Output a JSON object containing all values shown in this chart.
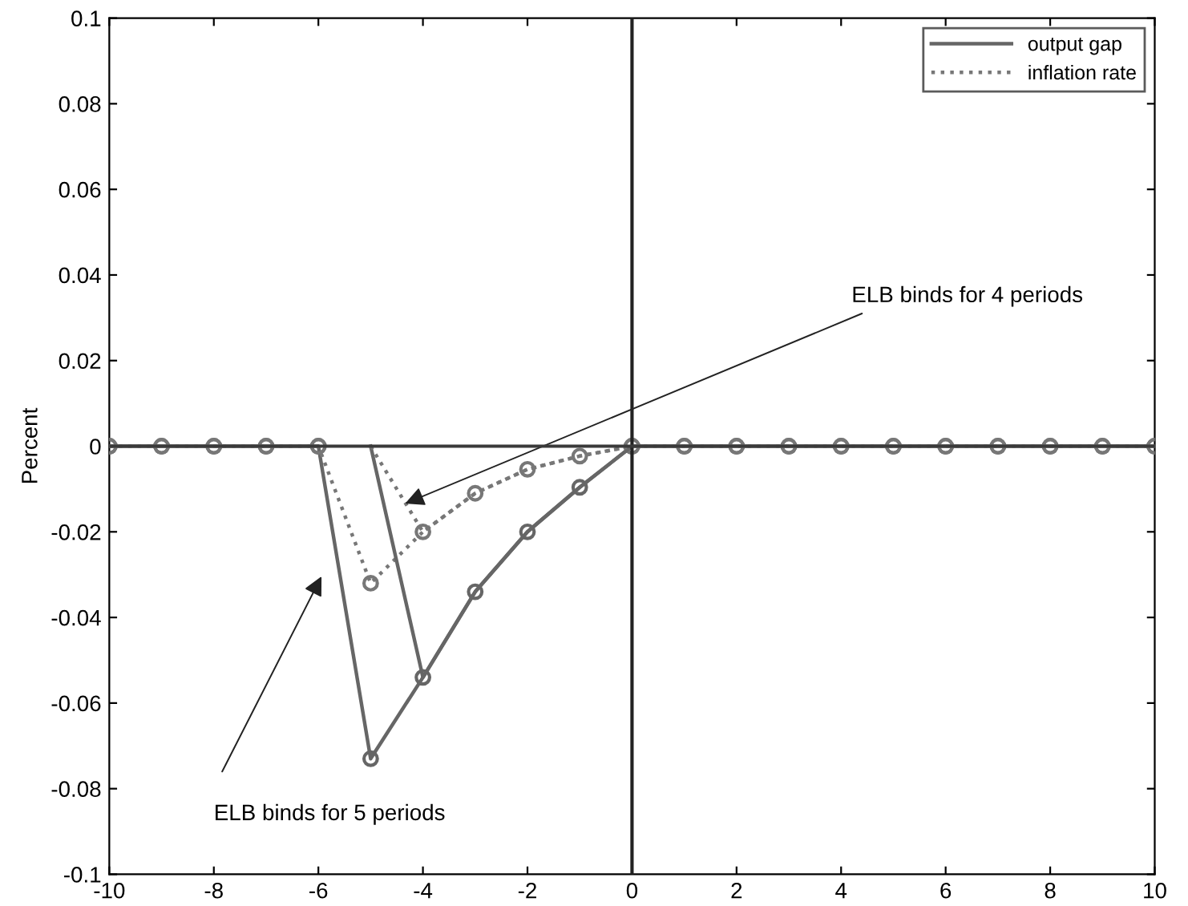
{
  "chart_data": {
    "type": "line",
    "ylabel": "Percent",
    "x": [
      -10,
      -9,
      -8,
      -7,
      -6,
      -5,
      -4,
      -3,
      -2,
      -1,
      0,
      1,
      2,
      3,
      4,
      5,
      6,
      7,
      8,
      9,
      10
    ],
    "series": [
      {
        "name": "output gap",
        "color": "#666666",
        "line_style": "solid",
        "marker": "circle",
        "values": [
          0,
          0,
          0,
          0,
          0,
          -0.073,
          -0.054,
          -0.034,
          -0.02,
          -0.0096,
          0,
          0,
          0,
          0,
          0,
          0,
          0,
          0,
          0,
          0,
          0
        ]
      },
      {
        "name": "inflation rate",
        "color": "#777777",
        "line_style": "dotted",
        "marker": "circle",
        "values": [
          0,
          0,
          0,
          0,
          0,
          -0.032,
          -0.02,
          -0.011,
          -0.0054,
          -0.0023,
          0,
          0,
          0,
          0,
          0,
          0,
          0,
          0,
          0,
          0,
          0
        ]
      },
      {
        "color": "#666666",
        "line_style": "solid",
        "marker": "none",
        "x": [
          -5,
          -4,
          -3,
          -2,
          -1,
          0
        ],
        "values": [
          0,
          -0.054,
          -0.034,
          -0.02,
          -0.0096,
          0
        ]
      },
      {
        "color": "#777777",
        "line_style": "dotted",
        "marker": "none",
        "x": [
          -5,
          -4,
          -3,
          -2,
          -1,
          0
        ],
        "values": [
          0,
          -0.02,
          -0.011,
          -0.0054,
          -0.0023,
          0
        ]
      }
    ],
    "xlim": [
      -10,
      10
    ],
    "ylim": [
      -0.1,
      0.1
    ],
    "xticks": [
      -10,
      -8,
      -6,
      -4,
      -2,
      0,
      2,
      4,
      6,
      8,
      10
    ],
    "yticks": [
      -0.1,
      -0.08,
      -0.06,
      -0.04,
      -0.02,
      0,
      0.02,
      0.04,
      0.06,
      0.08,
      0.1
    ],
    "ref_lines": [
      {
        "axis": "x",
        "value": 0,
        "color": "#222222"
      },
      {
        "axis": "y",
        "value": 0,
        "color": "#3a3a3a"
      }
    ],
    "annotations": [
      {
        "text": "ELB binds for 4 periods",
        "x": -4.34,
        "y": -0.0134
      },
      "ELB binds for 5 periods"
    ],
    "grid": false,
    "legend": "top right"
  }
}
